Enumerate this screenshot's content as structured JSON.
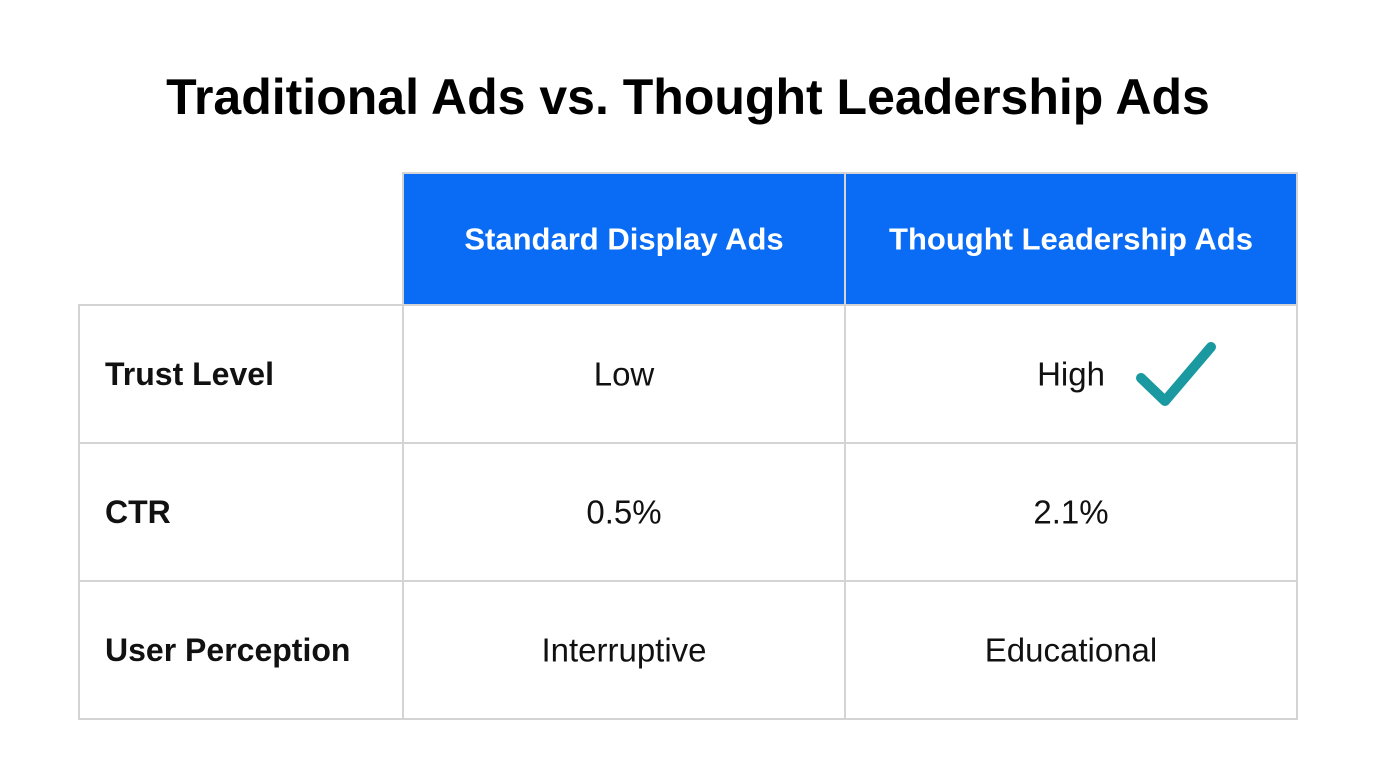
{
  "title": "Traditional Ads vs. Thought Leadership Ads",
  "table": {
    "columns": [
      "Standard Display Ads",
      "Thought Leadership Ads"
    ],
    "rows": [
      [
        "Trust Level",
        "Low",
        "High"
      ],
      [
        "CTR",
        "0.5%",
        "2.1%"
      ],
      [
        "User Perception",
        "Interruptive",
        "Educational"
      ]
    ]
  }
}
